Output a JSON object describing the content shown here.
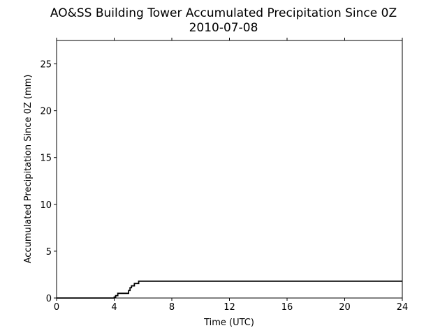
{
  "chart_data": {
    "type": "line",
    "title": "AO&SS Building Tower Accumulated Precipitation Since 0Z",
    "subtitle": "2010-07-08",
    "xlabel": "Time (UTC)",
    "ylabel": "Accumulated Precipitation Since 0Z (mm)",
    "xlim": [
      0,
      24
    ],
    "ylim": [
      0,
      27.5
    ],
    "x_ticks": [
      0,
      4,
      8,
      12,
      16,
      20,
      24
    ],
    "y_ticks": [
      0,
      5,
      10,
      15,
      20,
      25
    ],
    "grid": false,
    "line_color": "#000000",
    "series": [
      {
        "x": [
          0,
          4.0,
          4.0,
          4.1,
          4.1,
          4.25,
          4.25,
          5.0,
          5.0,
          5.1,
          5.1,
          5.2,
          5.2,
          5.4,
          5.4,
          5.7,
          5.7,
          24
        ],
        "y": [
          0,
          0,
          0.1,
          0.1,
          0.25,
          0.25,
          0.5,
          0.5,
          0.8,
          0.8,
          1.1,
          1.1,
          1.3,
          1.3,
          1.55,
          1.55,
          1.8,
          1.8
        ]
      }
    ]
  }
}
